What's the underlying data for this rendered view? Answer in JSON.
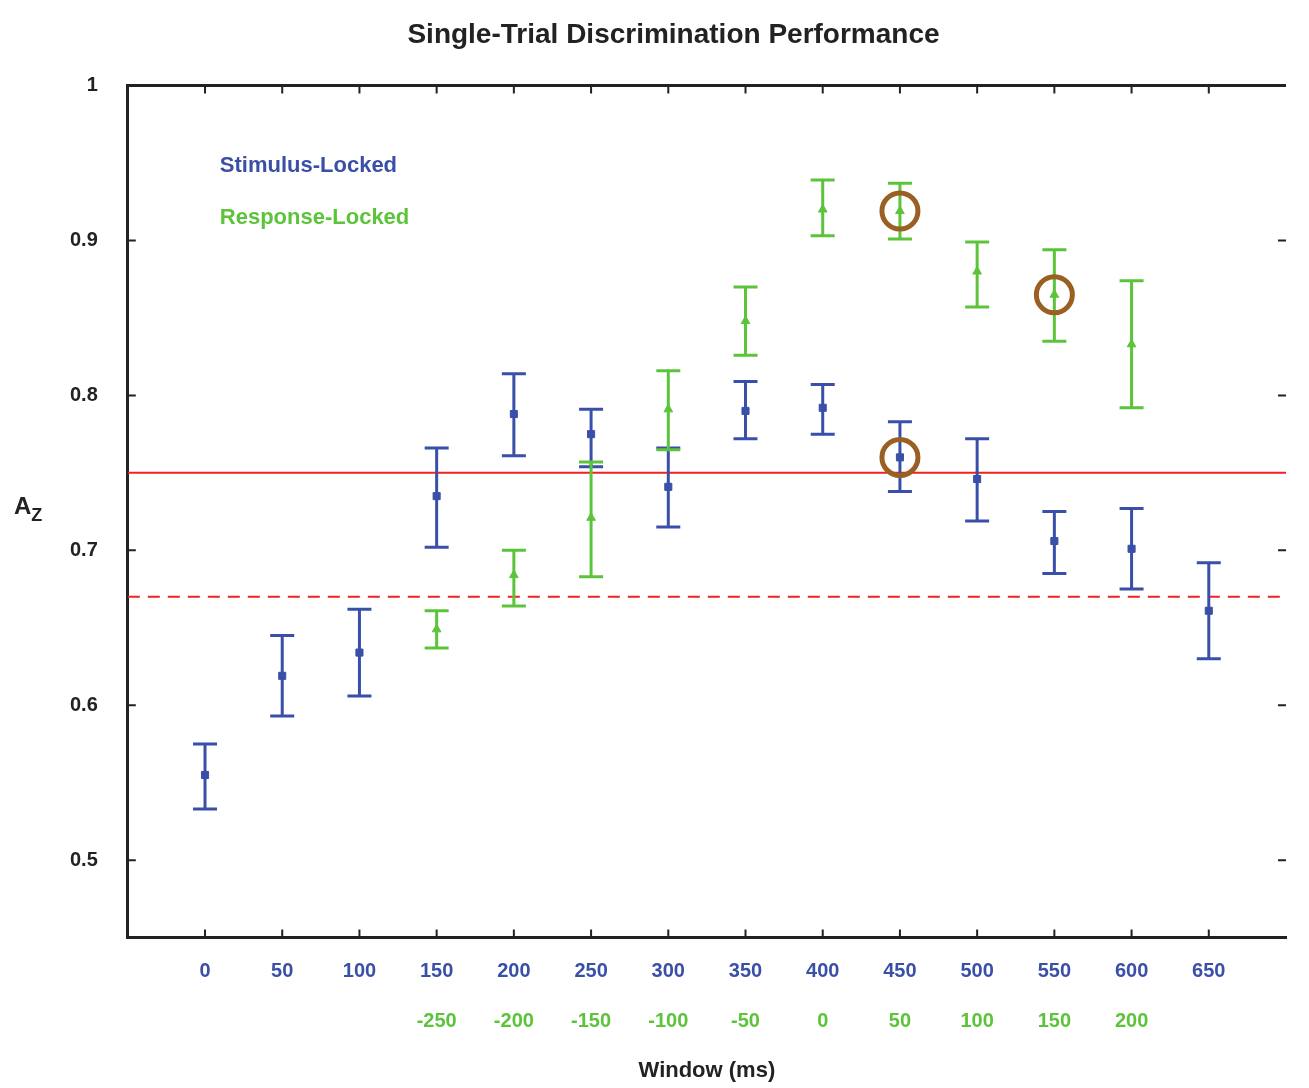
{
  "chart_data": {
    "type": "scatter",
    "title": "Single-Trial Discrimination Performance",
    "xlabel": "Window (ms)",
    "ylabel": "A$_{Z}$",
    "xlim": [
      -50,
      700
    ],
    "xticks": [
      0,
      50,
      100,
      150,
      200,
      250,
      300,
      350,
      400,
      450,
      500,
      550,
      600,
      650
    ],
    "x2lim": [
      -450,
      300
    ],
    "x2ticks": [
      -250,
      -200,
      -150,
      -100,
      -50,
      0,
      50,
      100,
      150,
      200
    ],
    "ylim": [
      0.45,
      1
    ],
    "yticks": [
      0.5,
      0.6,
      0.7,
      0.8,
      0.9,
      1
    ],
    "grid": false,
    "legend": "top left",
    "series": [
      {
        "name": "Stimulus-Locked",
        "type": "scatter",
        "marker": "square",
        "color": "#3a4fa8",
        "x": [
          0,
          50,
          100,
          150,
          200,
          250,
          300,
          350,
          400,
          450,
          500,
          550,
          600,
          650
        ],
        "values": [
          0.555,
          0.619,
          0.634,
          0.735,
          0.788,
          0.775,
          0.741,
          0.79,
          0.792,
          0.76,
          0.746,
          0.706,
          0.701,
          0.661
        ],
        "errors": [
          [
            0.533,
            0.575
          ],
          [
            0.593,
            0.645
          ],
          [
            0.606,
            0.662
          ],
          [
            0.702,
            0.766
          ],
          [
            0.761,
            0.814
          ],
          [
            0.754,
            0.791
          ],
          [
            0.715,
            0.766
          ],
          [
            0.772,
            0.809
          ],
          [
            0.775,
            0.807
          ],
          [
            0.738,
            0.783
          ],
          [
            0.719,
            0.772
          ],
          [
            0.685,
            0.725
          ],
          [
            0.675,
            0.727
          ],
          [
            0.63,
            0.692
          ]
        ]
      },
      {
        "name": "Response-Locked",
        "type": "scatter",
        "marker": "triangle",
        "axis": "x2",
        "color": "#5cc43a",
        "x": [
          -250,
          -200,
          -150,
          -100,
          -50,
          0,
          50,
          100,
          150,
          200
        ],
        "values": [
          0.649,
          0.684,
          0.721,
          0.791,
          0.848,
          0.92,
          0.919,
          0.88,
          0.865,
          0.833
        ],
        "errors": [
          [
            0.637,
            0.661
          ],
          [
            0.664,
            0.7
          ],
          [
            0.683,
            0.757
          ],
          [
            0.765,
            0.816
          ],
          [
            0.826,
            0.87
          ],
          [
            0.903,
            0.939
          ],
          [
            0.901,
            0.937
          ],
          [
            0.857,
            0.899
          ],
          [
            0.835,
            0.894
          ],
          [
            0.792,
            0.874
          ]
        ]
      },
      {
        "type": "scatter",
        "marker": "circle",
        "color": "#9a5f22",
        "x": [
          450,
          450,
          550
        ],
        "values": [
          0.76,
          0.919,
          0.865
        ]
      }
    ],
    "ref_lines": [
      {
        "axis": "y",
        "value": 0.75,
        "color": "#ee2222",
        "line_style": "solid"
      },
      {
        "axis": "y",
        "value": 0.67,
        "color": "#ee2222",
        "line_style": "dashed"
      }
    ]
  }
}
